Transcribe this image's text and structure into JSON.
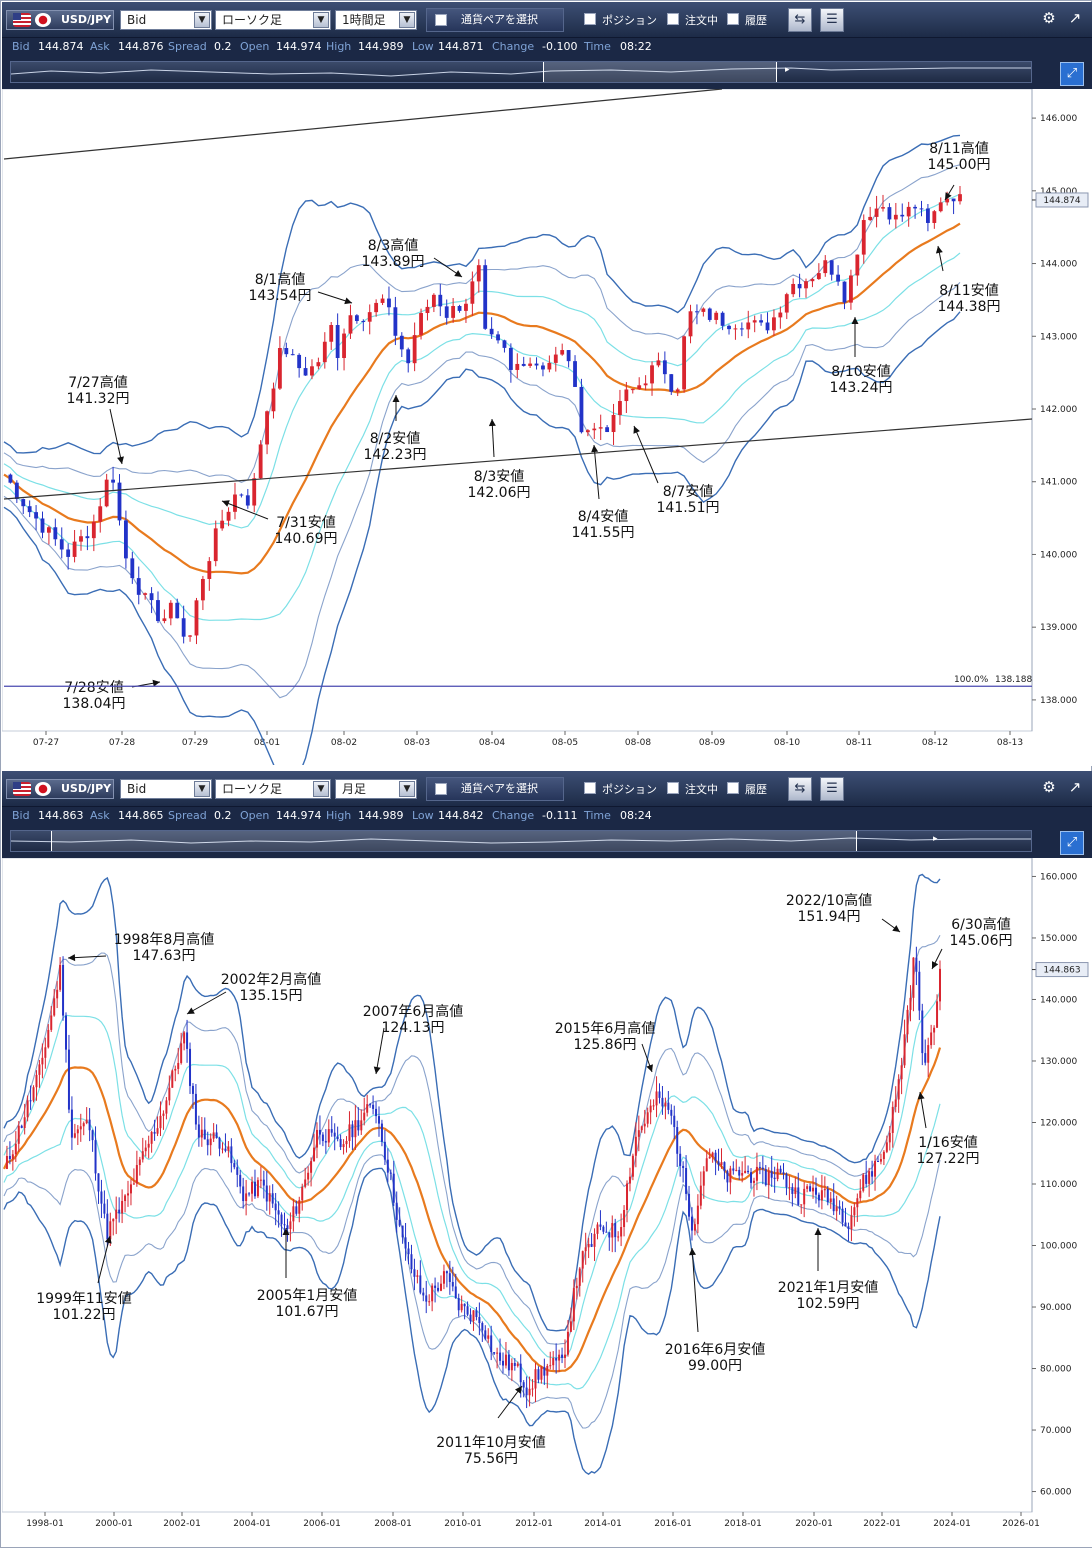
{
  "panels": [
    {
      "id": "p1",
      "pair": "USD/JPY",
      "price_type": "Bid",
      "chart_kind": "ローソク足",
      "timeframe": "1時間足",
      "pair_select": "通貨ペアを選択",
      "position": "ポジション",
      "orders": "注文中",
      "history": "履歴",
      "info": {
        "bid_k": "Bid",
        "bid": "144.874",
        "ask_k": "Ask",
        "ask": "144.876",
        "spread_k": "Spread",
        "spread": "0.2",
        "open_k": "Open",
        "open": "144.974",
        "high_k": "High",
        "high": "144.989",
        "low_k": "Low",
        "low": "144.871",
        "change_k": "Change",
        "change": "-0.100",
        "time_k": "Time",
        "time": "08:22"
      },
      "current_price_label": "144.874",
      "level_line": {
        "pct": "100.0%",
        "price": "138.188",
        "value": 138.188
      },
      "chart_data": {
        "type": "candlestick",
        "xlabels": [
          "07-27",
          "07-28",
          "07-29",
          "08-01",
          "08-02",
          "08-03",
          "08-04",
          "08-05",
          "08-08",
          "08-09",
          "08-10",
          "08-11",
          "08-12",
          "08-13"
        ],
        "yticks": [
          "146.000",
          "145.000",
          "144.000",
          "143.000",
          "142.000",
          "141.000",
          "140.000",
          "139.000",
          "138.000"
        ],
        "ylim": [
          137.6,
          146.4
        ],
        "close_path": [
          [
            0,
            141.1
          ],
          [
            4,
            140.6
          ],
          [
            8,
            140.2
          ],
          [
            10,
            140.0
          ],
          [
            14,
            140.4
          ],
          [
            17,
            141.2
          ],
          [
            19,
            140.0
          ],
          [
            22,
            139.4
          ],
          [
            25,
            139.1
          ],
          [
            27,
            139.3
          ],
          [
            29,
            138.7
          ],
          [
            31,
            139.6
          ],
          [
            34,
            140.4
          ],
          [
            37,
            140.9
          ],
          [
            39,
            140.7
          ],
          [
            41,
            141.8
          ],
          [
            44,
            142.9
          ],
          [
            46,
            142.6
          ],
          [
            48,
            142.5
          ],
          [
            50,
            142.7
          ],
          [
            52,
            143.2
          ],
          [
            53,
            142.6
          ],
          [
            54,
            143.3
          ],
          [
            57,
            143.3
          ],
          [
            60,
            143.5
          ],
          [
            62,
            143.0
          ],
          [
            64,
            142.6
          ],
          [
            65,
            143.1
          ],
          [
            68,
            143.6
          ],
          [
            70,
            143.3
          ],
          [
            73,
            143.5
          ],
          [
            75,
            143.9
          ],
          [
            76,
            143.0
          ],
          [
            79,
            142.8
          ],
          [
            80,
            142.5
          ],
          [
            82,
            142.7
          ],
          [
            85,
            142.6
          ],
          [
            89,
            142.8
          ],
          [
            91,
            141.8
          ],
          [
            93,
            141.7
          ],
          [
            95,
            141.8
          ],
          [
            96,
            141.7
          ],
          [
            97,
            142.1
          ],
          [
            100,
            142.3
          ],
          [
            103,
            142.6
          ],
          [
            105,
            142.5
          ],
          [
            106,
            142.1
          ],
          [
            108,
            143.3
          ],
          [
            111,
            143.3
          ],
          [
            114,
            143.2
          ],
          [
            117,
            143.2
          ],
          [
            120,
            143.1
          ],
          [
            122,
            143.3
          ],
          [
            124,
            143.7
          ],
          [
            127,
            143.8
          ],
          [
            130,
            144.0
          ],
          [
            132,
            143.8
          ],
          [
            133,
            143.5
          ],
          [
            136,
            144.7
          ],
          [
            139,
            144.8
          ],
          [
            141,
            144.6
          ],
          [
            144,
            144.8
          ],
          [
            146,
            144.5
          ],
          [
            148,
            144.9
          ],
          [
            150,
            144.95
          ],
          [
            151,
            144.87
          ]
        ],
        "annotations": [
          {
            "label": "7/27高値",
            "price": "141.32円",
            "date": "7/27",
            "value": 141.32,
            "kind": "high"
          },
          {
            "label": "7/28安値",
            "price": "138.04円",
            "date": "7/28",
            "value": 138.04,
            "kind": "low"
          },
          {
            "label": "7/31安値",
            "price": "140.69円",
            "date": "7/31",
            "value": 140.69,
            "kind": "low"
          },
          {
            "label": "8/1高値",
            "price": "143.54円",
            "date": "8/1",
            "value": 143.54,
            "kind": "high"
          },
          {
            "label": "8/2安値",
            "price": "142.23円",
            "date": "8/2",
            "value": 142.23,
            "kind": "low"
          },
          {
            "label": "8/3高値",
            "price": "143.89円",
            "date": "8/3",
            "value": 143.89,
            "kind": "high"
          },
          {
            "label": "8/3安値",
            "price": "142.06円",
            "date": "8/3",
            "value": 142.06,
            "kind": "low"
          },
          {
            "label": "8/4安値",
            "price": "141.55円",
            "date": "8/4",
            "value": 141.55,
            "kind": "low"
          },
          {
            "label": "8/7安値",
            "price": "141.51円",
            "date": "8/7",
            "value": 141.51,
            "kind": "low"
          },
          {
            "label": "8/10安値",
            "price": "143.24円",
            "date": "8/10",
            "value": 143.24,
            "kind": "low"
          },
          {
            "label": "8/11高値",
            "price": "145.00円",
            "date": "8/11",
            "value": 145.0,
            "kind": "high"
          },
          {
            "label": "8/11安値",
            "price": "144.38円",
            "date": "8/11",
            "value": 144.38,
            "kind": "low"
          }
        ]
      }
    },
    {
      "id": "p2",
      "pair": "USD/JPY",
      "price_type": "Bid",
      "chart_kind": "ローソク足",
      "timeframe": "月足",
      "pair_select": "通貨ペアを選択",
      "position": "ポジション",
      "orders": "注文中",
      "history": "履歴",
      "info": {
        "bid_k": "Bid",
        "bid": "144.863",
        "ask_k": "Ask",
        "ask": "144.865",
        "spread_k": "Spread",
        "spread": "0.2",
        "open_k": "Open",
        "open": "144.974",
        "high_k": "High",
        "high": "144.989",
        "low_k": "Low",
        "low": "144.842",
        "change_k": "Change",
        "change": "-0.111",
        "time_k": "Time",
        "time": "08:24"
      },
      "current_price_label": "144.863",
      "chart_data": {
        "type": "candlestick",
        "xlabels": [
          "1998-01",
          "2000-01",
          "2002-01",
          "2004-01",
          "2006-01",
          "2008-01",
          "2010-01",
          "2012-01",
          "2014-01",
          "2016-01",
          "2018-01",
          "2020-01",
          "2022-01",
          "2024-01",
          "2026-01"
        ],
        "yticks": [
          "160.000",
          "150.000",
          "140.000",
          "130.000",
          "120.000",
          "110.000",
          "100.000",
          "90.000",
          "80.000",
          "70.000",
          "60.000"
        ],
        "ylim": [
          57,
          163
        ],
        "close_path": [
          [
            1997.0,
            112
          ],
          [
            1997.5,
            120
          ],
          [
            1998.0,
            128
          ],
          [
            1998.6,
            145
          ],
          [
            1998.9,
            118
          ],
          [
            1999.4,
            120
          ],
          [
            1999.9,
            102
          ],
          [
            2000.5,
            108
          ],
          [
            2000.9,
            114
          ],
          [
            2001.5,
            122
          ],
          [
            2002.1,
            134
          ],
          [
            2002.5,
            118
          ],
          [
            2003.2,
            117
          ],
          [
            2003.8,
            108
          ],
          [
            2004.3,
            110
          ],
          [
            2005.0,
            102
          ],
          [
            2005.5,
            110
          ],
          [
            2005.9,
            119
          ],
          [
            2006.5,
            116
          ],
          [
            2007.0,
            120
          ],
          [
            2007.5,
            123
          ],
          [
            2007.9,
            112
          ],
          [
            2008.3,
            100
          ],
          [
            2008.9,
            91
          ],
          [
            2009.5,
            95
          ],
          [
            2009.9,
            90
          ],
          [
            2010.5,
            88
          ],
          [
            2010.9,
            82
          ],
          [
            2011.5,
            80
          ],
          [
            2011.8,
            77
          ],
          [
            2012.3,
            80
          ],
          [
            2012.8,
            81
          ],
          [
            2013.3,
            97
          ],
          [
            2013.9,
            103
          ],
          [
            2014.4,
            102
          ],
          [
            2014.9,
            118
          ],
          [
            2015.5,
            124
          ],
          [
            2015.9,
            121
          ],
          [
            2016.5,
            103
          ],
          [
            2016.9,
            115
          ],
          [
            2017.5,
            111
          ],
          [
            2017.9,
            112
          ],
          [
            2018.5,
            111
          ],
          [
            2018.9,
            112
          ],
          [
            2019.5,
            108
          ],
          [
            2019.9,
            109
          ],
          [
            2020.5,
            107
          ],
          [
            2020.9,
            104
          ],
          [
            2021.3,
            110
          ],
          [
            2021.9,
            115
          ],
          [
            2022.3,
            125
          ],
          [
            2022.8,
            148
          ],
          [
            2023.0,
            130
          ],
          [
            2023.3,
            134
          ],
          [
            2023.5,
            145
          ]
        ],
        "annotations": [
          {
            "label": "1998年8月高値",
            "price": "147.63円",
            "date": "1998-08",
            "value": 147.63,
            "kind": "high"
          },
          {
            "label": "1999年11安値",
            "price": "101.22円",
            "date": "1999-11",
            "value": 101.22,
            "kind": "low"
          },
          {
            "label": "2002年2月高値",
            "price": "135.15円",
            "date": "2002-02",
            "value": 135.15,
            "kind": "high"
          },
          {
            "label": "2005年1月安値",
            "price": "101.67円",
            "date": "2005-01",
            "value": 101.67,
            "kind": "low"
          },
          {
            "label": "2007年6月高値",
            "price": "124.13円",
            "date": "2007-06",
            "value": 124.13,
            "kind": "high"
          },
          {
            "label": "2011年10月安値",
            "price": "75.56円",
            "date": "2011-10",
            "value": 75.56,
            "kind": "low"
          },
          {
            "label": "2015年6月高値",
            "price": "125.86円",
            "date": "2015-06",
            "value": 125.86,
            "kind": "high"
          },
          {
            "label": "2016年6月安値",
            "price": "99.00円",
            "date": "2016-06",
            "value": 99.0,
            "kind": "low"
          },
          {
            "label": "2021年1月安値",
            "price": "102.59円",
            "date": "2021-01",
            "value": 102.59,
            "kind": "low"
          },
          {
            "label": "2022/10高値",
            "price": "151.94円",
            "date": "2022-10",
            "value": 151.94,
            "kind": "high"
          },
          {
            "label": "6/30高値",
            "price": "145.06円",
            "date": "6/30",
            "value": 145.06,
            "kind": "high"
          },
          {
            "label": "1/16安値",
            "price": "127.22円",
            "date": "1/16",
            "value": 127.22,
            "kind": "low"
          }
        ]
      }
    }
  ]
}
